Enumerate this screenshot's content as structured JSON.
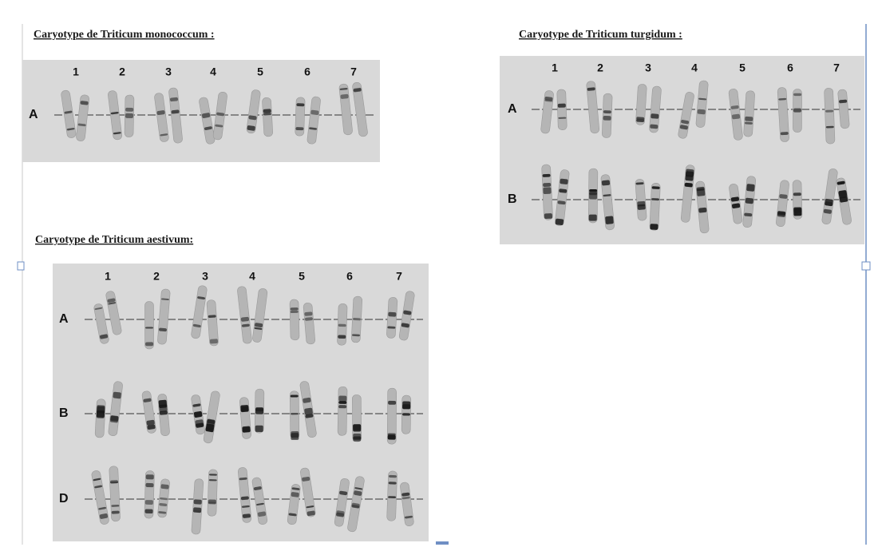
{
  "panels": [
    {
      "title": "Caryotype de Triticum monococcum :",
      "columns": [
        "1",
        "2",
        "3",
        "4",
        "5",
        "6",
        "7"
      ],
      "rows": [
        "A"
      ]
    },
    {
      "title": "Caryotype de Triticum turgidum :",
      "columns": [
        "1",
        "2",
        "3",
        "4",
        "5",
        "6",
        "7"
      ],
      "rows": [
        "A",
        "B"
      ]
    },
    {
      "title": "Caryotype de Triticum aestivum:",
      "columns": [
        "1",
        "2",
        "3",
        "4",
        "5",
        "6",
        "7"
      ],
      "rows": [
        "A",
        "B",
        "D"
      ]
    }
  ]
}
